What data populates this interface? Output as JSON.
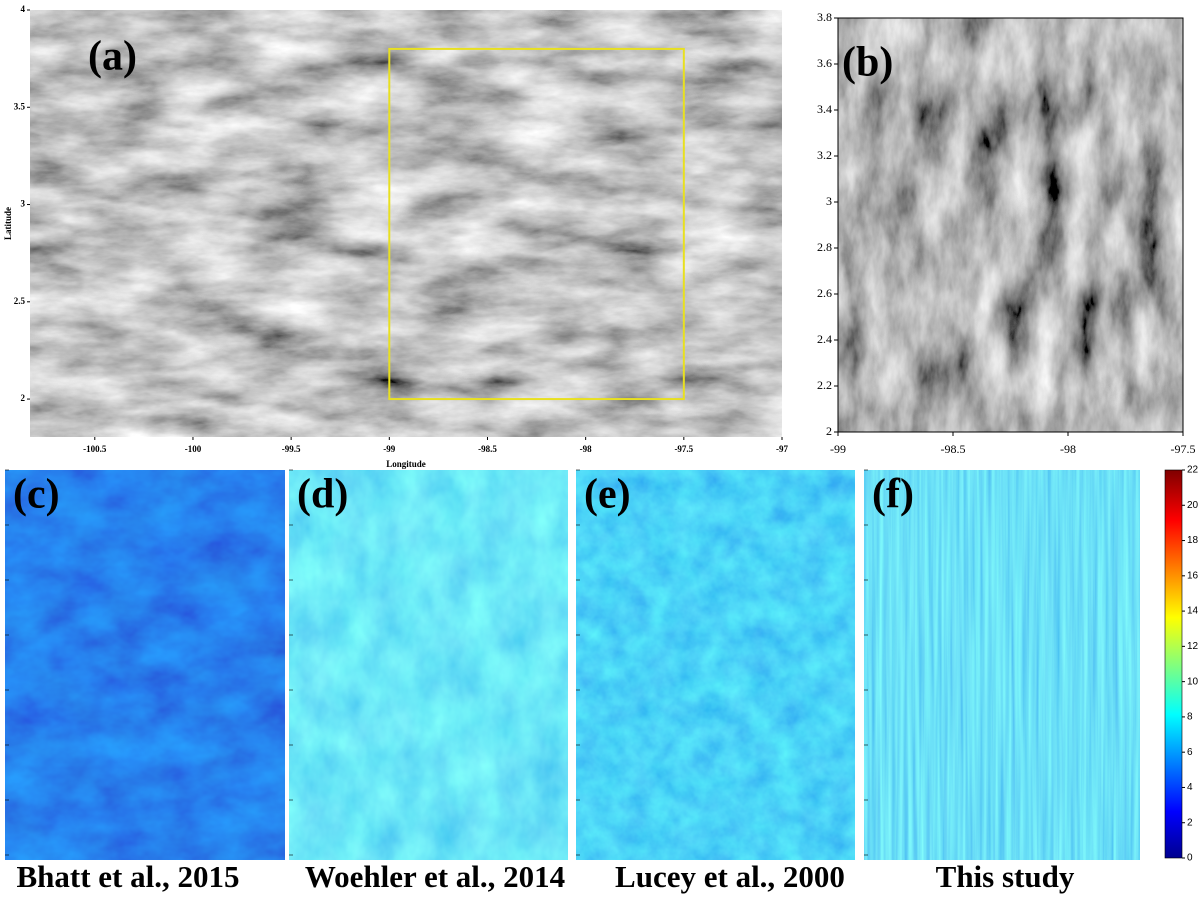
{
  "panels": [
    {
      "label": "(a)",
      "x_label": "Longitude",
      "y_label": "Latitude",
      "xlim": [
        -100.83,
        -97
      ],
      "ylim": [
        1.805,
        4
      ],
      "xticks": [
        -100.5,
        -100,
        -99.5,
        -99,
        -98.5,
        -98,
        -97.5,
        -97
      ],
      "yticks": [
        2,
        2.5,
        3,
        3.5,
        4
      ]
    },
    {
      "label": "(b)",
      "xlim": [
        -99,
        -97.5
      ],
      "ylim": [
        2,
        3.8
      ],
      "xticks": [
        -99,
        -98.5,
        -98,
        -97.5
      ],
      "yticks": [
        2,
        2.2,
        2.4,
        2.6,
        2.8,
        3,
        3.2,
        3.4,
        3.6,
        3.8
      ]
    },
    {
      "label": "(c)",
      "caption": "Bhatt et al., 2015"
    },
    {
      "label": "(d)",
      "caption": "Woehler et al., 2014"
    },
    {
      "label": "(e)",
      "caption": "Lucey et al., 2000"
    },
    {
      "label": "(f)",
      "caption": "This study"
    }
  ],
  "colorbar": {
    "ylim": [
      0,
      22
    ],
    "yticks": [
      0,
      2,
      4,
      6,
      8,
      10,
      12,
      14,
      16,
      18,
      20,
      22
    ]
  }
}
